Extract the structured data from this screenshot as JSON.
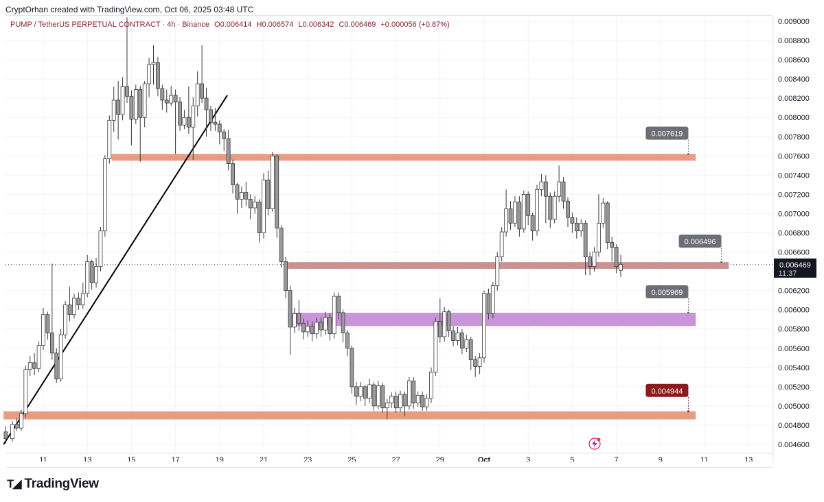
{
  "header": {
    "credit": "CryptOrhan created with TradingView.com, Oct 06, 2025 03:48 UTC"
  },
  "legend": {
    "symbol": "PUMP / TetherUS PERPETUAL CONTRACT · 4h · Binance",
    "open": "O0.006414",
    "high": "H0.006574",
    "low": "L0.006342",
    "close": "C0.006469",
    "change": "+0.000056 (+0.87%)"
  },
  "footer": {
    "brand": "TradingView",
    "logo_icon": "tradingview-logo-icon"
  },
  "chart_data": {
    "type": "candlestick",
    "y_axis": {
      "min": 0.0046,
      "max": 0.009,
      "ticks": [
        "0.009000",
        "0.008800",
        "0.008600",
        "0.008400",
        "0.008200",
        "0.008000",
        "0.007800",
        "0.007600",
        "0.007400",
        "0.007200",
        "0.007000",
        "0.006800",
        "0.006600",
        "0.006200",
        "0.006000",
        "0.005800",
        "0.005600",
        "0.005400",
        "0.005200",
        "0.005000",
        "0.004800",
        "0.004600"
      ]
    },
    "x_axis": {
      "ticks": [
        {
          "label": "11",
          "day": 11
        },
        {
          "label": "13",
          "day": 13
        },
        {
          "label": "15",
          "day": 15
        },
        {
          "label": "17",
          "day": 17
        },
        {
          "label": "19",
          "day": 19
        },
        {
          "label": "21",
          "day": 21
        },
        {
          "label": "23",
          "day": 23
        },
        {
          "label": "25",
          "day": 25
        },
        {
          "label": "27",
          "day": 27
        },
        {
          "label": "29",
          "day": 29
        },
        {
          "label": "Oct",
          "day": 31,
          "bold": true
        },
        {
          "label": "3",
          "day": 33
        },
        {
          "label": "5",
          "day": 35
        },
        {
          "label": "7",
          "day": 37
        },
        {
          "label": "9",
          "day": 39
        },
        {
          "label": "11",
          "day": 41
        },
        {
          "label": "13",
          "day": 43
        }
      ]
    },
    "current_price": {
      "label": "0.006469",
      "countdown": "11:37",
      "value": 0.006469,
      "color": "#131722"
    },
    "price_zones": [
      {
        "name": "resistance-zone",
        "top": 0.00762,
        "bottom": 0.00755,
        "from_day": 14.1,
        "to_day": 40.6,
        "color": "#e8977a",
        "tag": "0.007619",
        "tag_value": 0.007619,
        "tag_day": 39.3,
        "tag_bg": "#6b6e76"
      },
      {
        "name": "pivot-zone",
        "top": 0.006496,
        "bottom": 0.006425,
        "from_day": 22.1,
        "to_day": 42.1,
        "color": "#c98c8c",
        "tag": "0.006496",
        "tag_value": 0.006496,
        "tag_day": 40.8,
        "tag_bg": "#6b6e76"
      },
      {
        "name": "support-zone",
        "top": 0.005969,
        "bottom": 0.00583,
        "from_day": 22.1,
        "to_day": 40.6,
        "color": "#c48fd6",
        "tag": "0.005969",
        "tag_value": 0.005969,
        "tag_day": 39.3,
        "tag_bg": "#6b6e76"
      },
      {
        "name": "major-support-zone",
        "top": 0.004944,
        "bottom": 0.00486,
        "from_day": 9.2,
        "to_day": 40.6,
        "color": "#e8977a",
        "tag": "0.004944",
        "tag_value": 0.004944,
        "tag_day": 39.3,
        "tag_bg": "#8b1a1a"
      }
    ],
    "trendline": {
      "from_day": 9.2,
      "from_price": 0.0046,
      "to_day": 19.35,
      "to_price": 0.00823
    },
    "candles": [
      [
        9.3,
        0.00473,
        0.00466,
        0.00479,
        0.00461
      ],
      [
        9.6,
        0.00466,
        0.00481,
        0.00484,
        0.00463
      ],
      [
        9.8,
        0.00481,
        0.00477,
        0.00487,
        0.00474
      ],
      [
        10.0,
        0.00477,
        0.00492,
        0.00496,
        0.00474
      ],
      [
        10.2,
        0.00492,
        0.00538,
        0.00542,
        0.00488
      ],
      [
        10.4,
        0.00538,
        0.00545,
        0.00552,
        0.00531
      ],
      [
        10.6,
        0.00545,
        0.00539,
        0.00555,
        0.00532
      ],
      [
        10.8,
        0.00539,
        0.00563,
        0.00567,
        0.00535
      ],
      [
        11.0,
        0.00563,
        0.00595,
        0.00602,
        0.00558
      ],
      [
        11.2,
        0.00595,
        0.00576,
        0.00598,
        0.00569
      ],
      [
        11.4,
        0.00576,
        0.00555,
        0.00648,
        0.00548
      ],
      [
        11.6,
        0.00555,
        0.00528,
        0.0056,
        0.00524
      ],
      [
        11.8,
        0.00528,
        0.00574,
        0.0058,
        0.00525
      ],
      [
        12.0,
        0.00574,
        0.00605,
        0.00609,
        0.0057
      ],
      [
        12.2,
        0.00605,
        0.00595,
        0.00624,
        0.00588
      ],
      [
        12.4,
        0.00595,
        0.00612,
        0.00617,
        0.00591
      ],
      [
        12.6,
        0.00612,
        0.00605,
        0.00618,
        0.006
      ],
      [
        12.8,
        0.00605,
        0.00617,
        0.00628,
        0.00601
      ],
      [
        13.0,
        0.00617,
        0.0065,
        0.00657,
        0.00613
      ],
      [
        13.2,
        0.0065,
        0.00628,
        0.00652,
        0.00621
      ],
      [
        13.4,
        0.00628,
        0.00645,
        0.00654,
        0.00623
      ],
      [
        13.6,
        0.00645,
        0.00682,
        0.00686,
        0.0064
      ],
      [
        13.8,
        0.00682,
        0.00757,
        0.00761,
        0.00676
      ],
      [
        14.0,
        0.00757,
        0.00797,
        0.00802,
        0.00752
      ],
      [
        14.2,
        0.00797,
        0.00818,
        0.00832,
        0.00785
      ],
      [
        14.4,
        0.00818,
        0.00803,
        0.00838,
        0.00777
      ],
      [
        14.6,
        0.00803,
        0.00832,
        0.00842,
        0.00797
      ],
      [
        14.8,
        0.00832,
        0.00822,
        0.00904,
        0.00815
      ],
      [
        15.0,
        0.00822,
        0.00798,
        0.00828,
        0.00771
      ],
      [
        15.2,
        0.00798,
        0.00829,
        0.00834,
        0.00793
      ],
      [
        15.4,
        0.00829,
        0.008,
        0.00833,
        0.00754
      ],
      [
        15.6,
        0.008,
        0.00835,
        0.00838,
        0.0079
      ],
      [
        15.8,
        0.00835,
        0.00855,
        0.00862,
        0.00821
      ],
      [
        16.0,
        0.00855,
        0.00857,
        0.00875,
        0.00834
      ],
      [
        16.2,
        0.00857,
        0.0083,
        0.00863,
        0.00822
      ],
      [
        16.4,
        0.0083,
        0.00818,
        0.00834,
        0.00808
      ],
      [
        16.6,
        0.00818,
        0.00815,
        0.00829,
        0.00805
      ],
      [
        16.8,
        0.00815,
        0.00823,
        0.00833,
        0.00812
      ],
      [
        17.0,
        0.00823,
        0.00816,
        0.00829,
        0.00762
      ],
      [
        17.2,
        0.00816,
        0.00792,
        0.00821,
        0.00786
      ],
      [
        17.4,
        0.00792,
        0.008,
        0.00808,
        0.00788
      ],
      [
        17.6,
        0.008,
        0.0079,
        0.00832,
        0.00783
      ],
      [
        17.8,
        0.0079,
        0.00812,
        0.00821,
        0.00756
      ],
      [
        18.0,
        0.00812,
        0.00835,
        0.00848,
        0.00801
      ],
      [
        18.2,
        0.00835,
        0.0082,
        0.00875,
        0.00815
      ],
      [
        18.4,
        0.0082,
        0.00808,
        0.00831,
        0.0078
      ],
      [
        18.6,
        0.00808,
        0.00795,
        0.00812,
        0.00786
      ],
      [
        18.8,
        0.00795,
        0.00793,
        0.0081,
        0.00786
      ],
      [
        19.0,
        0.00793,
        0.00785,
        0.00797,
        0.00772
      ],
      [
        19.2,
        0.00785,
        0.00778,
        0.00788,
        0.00765
      ],
      [
        19.4,
        0.00778,
        0.00752,
        0.00787,
        0.00745
      ],
      [
        19.6,
        0.00752,
        0.0073,
        0.00756,
        0.00721
      ],
      [
        19.8,
        0.0073,
        0.00715,
        0.00732,
        0.007
      ],
      [
        20.0,
        0.00715,
        0.00722,
        0.00728,
        0.00706
      ],
      [
        20.2,
        0.00722,
        0.00715,
        0.00733,
        0.00708
      ],
      [
        20.4,
        0.00715,
        0.00706,
        0.0072,
        0.00694
      ],
      [
        20.6,
        0.00706,
        0.00712,
        0.00718,
        0.007
      ],
      [
        20.8,
        0.00712,
        0.0068,
        0.00715,
        0.0067
      ],
      [
        21.0,
        0.0068,
        0.00735,
        0.00742,
        0.00674
      ],
      [
        21.2,
        0.00735,
        0.00705,
        0.00745,
        0.00698
      ],
      [
        21.4,
        0.00705,
        0.0076,
        0.00764,
        0.00702
      ],
      [
        21.6,
        0.0076,
        0.00685,
        0.00762,
        0.00675
      ],
      [
        21.8,
        0.00685,
        0.0065,
        0.00688,
        0.00644
      ],
      [
        22.0,
        0.0065,
        0.0062,
        0.00655,
        0.00612
      ],
      [
        22.2,
        0.0062,
        0.00582,
        0.00625,
        0.00553
      ],
      [
        22.4,
        0.00582,
        0.00596,
        0.00602,
        0.00576
      ],
      [
        22.6,
        0.00596,
        0.00586,
        0.0061,
        0.00578
      ],
      [
        22.8,
        0.00586,
        0.00577,
        0.00591,
        0.00569
      ],
      [
        23.0,
        0.00577,
        0.00583,
        0.00589,
        0.00572
      ],
      [
        23.2,
        0.00583,
        0.00575,
        0.00588,
        0.00567
      ],
      [
        23.4,
        0.00575,
        0.00587,
        0.00592,
        0.0057
      ],
      [
        23.6,
        0.00587,
        0.00579,
        0.00592,
        0.00572
      ],
      [
        23.8,
        0.00579,
        0.00592,
        0.00598,
        0.00574
      ],
      [
        24.0,
        0.00592,
        0.00575,
        0.00596,
        0.00568
      ],
      [
        24.2,
        0.00575,
        0.00614,
        0.00618,
        0.0057
      ],
      [
        24.4,
        0.00614,
        0.00597,
        0.00618,
        0.0059
      ],
      [
        24.6,
        0.00597,
        0.00576,
        0.006,
        0.00566
      ],
      [
        24.8,
        0.00576,
        0.0056,
        0.00579,
        0.00552
      ],
      [
        25.0,
        0.0056,
        0.0052,
        0.00563,
        0.00513
      ],
      [
        25.2,
        0.0052,
        0.0051,
        0.00525,
        0.00501
      ],
      [
        25.4,
        0.0051,
        0.0052,
        0.00525,
        0.00505
      ],
      [
        25.6,
        0.0052,
        0.00508,
        0.00522,
        0.005
      ],
      [
        25.8,
        0.00508,
        0.00522,
        0.00528,
        0.00503
      ],
      [
        26.0,
        0.00522,
        0.005,
        0.00525,
        0.00495
      ],
      [
        26.2,
        0.005,
        0.00521,
        0.00526,
        0.00497
      ],
      [
        26.4,
        0.00521,
        0.00498,
        0.00524,
        0.00493
      ],
      [
        26.6,
        0.00498,
        0.00503,
        0.00507,
        0.00486
      ],
      [
        26.8,
        0.00503,
        0.0051,
        0.00514,
        0.00498
      ],
      [
        27.0,
        0.0051,
        0.00498,
        0.00515,
        0.00493
      ],
      [
        27.2,
        0.00498,
        0.00512,
        0.00516,
        0.00494
      ],
      [
        27.4,
        0.00512,
        0.005,
        0.00515,
        0.00489
      ],
      [
        27.6,
        0.005,
        0.00526,
        0.0053,
        0.00496
      ],
      [
        27.8,
        0.00526,
        0.00503,
        0.0053,
        0.00497
      ],
      [
        28.0,
        0.00503,
        0.00511,
        0.00515,
        0.00499
      ],
      [
        28.2,
        0.00511,
        0.00499,
        0.00515,
        0.00495
      ],
      [
        28.4,
        0.00499,
        0.00508,
        0.00512,
        0.00495
      ],
      [
        28.6,
        0.00508,
        0.00535,
        0.0054,
        0.00503
      ],
      [
        28.8,
        0.00535,
        0.00588,
        0.00592,
        0.00531
      ],
      [
        29.0,
        0.00588,
        0.00572,
        0.00612,
        0.00566
      ],
      [
        29.2,
        0.00572,
        0.00598,
        0.00603,
        0.00567
      ],
      [
        29.4,
        0.00598,
        0.00578,
        0.006,
        0.00572
      ],
      [
        29.6,
        0.00578,
        0.00568,
        0.00583,
        0.00562
      ],
      [
        29.8,
        0.00568,
        0.00576,
        0.00582,
        0.00563
      ],
      [
        30.0,
        0.00576,
        0.0056,
        0.0058,
        0.00554
      ],
      [
        30.2,
        0.0056,
        0.00569,
        0.00574,
        0.00556
      ],
      [
        30.4,
        0.00569,
        0.00548,
        0.00572,
        0.00537
      ],
      [
        30.6,
        0.00548,
        0.00541,
        0.00552,
        0.0053
      ],
      [
        30.8,
        0.00541,
        0.0055,
        0.00555,
        0.00533
      ],
      [
        31.0,
        0.0055,
        0.00617,
        0.0062,
        0.00545
      ],
      [
        31.2,
        0.00617,
        0.00596,
        0.00622,
        0.0059
      ],
      [
        31.4,
        0.00596,
        0.00625,
        0.00629,
        0.00591
      ],
      [
        31.6,
        0.00625,
        0.00655,
        0.0066,
        0.0062
      ],
      [
        31.8,
        0.00655,
        0.00681,
        0.00686,
        0.0065
      ],
      [
        32.0,
        0.00681,
        0.00705,
        0.00725,
        0.00676
      ],
      [
        32.2,
        0.00705,
        0.0069,
        0.00713,
        0.00683
      ],
      [
        32.4,
        0.0069,
        0.00712,
        0.00718,
        0.00686
      ],
      [
        32.6,
        0.00712,
        0.00684,
        0.00718,
        0.00676
      ],
      [
        32.8,
        0.00684,
        0.0072,
        0.00724,
        0.0068
      ],
      [
        33.0,
        0.0072,
        0.00698,
        0.00723,
        0.00688
      ],
      [
        33.2,
        0.00698,
        0.00682,
        0.00701,
        0.00672
      ],
      [
        33.4,
        0.00682,
        0.00725,
        0.0073,
        0.00677
      ],
      [
        33.6,
        0.00725,
        0.00733,
        0.00741,
        0.00718
      ],
      [
        33.8,
        0.00733,
        0.00718,
        0.0074,
        0.0069
      ],
      [
        34.0,
        0.00718,
        0.00694,
        0.00722,
        0.00685
      ],
      [
        34.2,
        0.00694,
        0.00718,
        0.00723,
        0.0069
      ],
      [
        34.4,
        0.00718,
        0.00733,
        0.0075,
        0.00712
      ],
      [
        34.6,
        0.00733,
        0.00713,
        0.00738,
        0.00705
      ],
      [
        34.8,
        0.00713,
        0.00696,
        0.00717,
        0.00686
      ],
      [
        35.0,
        0.00696,
        0.0069,
        0.00701,
        0.0068
      ],
      [
        35.2,
        0.0069,
        0.00682,
        0.00696,
        0.00674
      ],
      [
        35.4,
        0.00682,
        0.0069,
        0.00694,
        0.00676
      ],
      [
        35.6,
        0.0069,
        0.00655,
        0.00693,
        0.00636
      ],
      [
        35.8,
        0.00655,
        0.00645,
        0.0066,
        0.00636
      ],
      [
        36.0,
        0.00645,
        0.0066,
        0.00665,
        0.0064
      ],
      [
        36.2,
        0.0066,
        0.0069,
        0.0072,
        0.00655
      ],
      [
        36.4,
        0.0069,
        0.00711,
        0.00716,
        0.00685
      ],
      [
        36.6,
        0.00711,
        0.0067,
        0.00713,
        0.00663
      ],
      [
        36.8,
        0.0067,
        0.00665,
        0.00676,
        0.0065
      ],
      [
        37.0,
        0.00665,
        0.00645,
        0.00668,
        0.00638
      ],
      [
        37.2,
        0.00641,
        0.00647,
        0.00657,
        0.00634
      ]
    ]
  }
}
